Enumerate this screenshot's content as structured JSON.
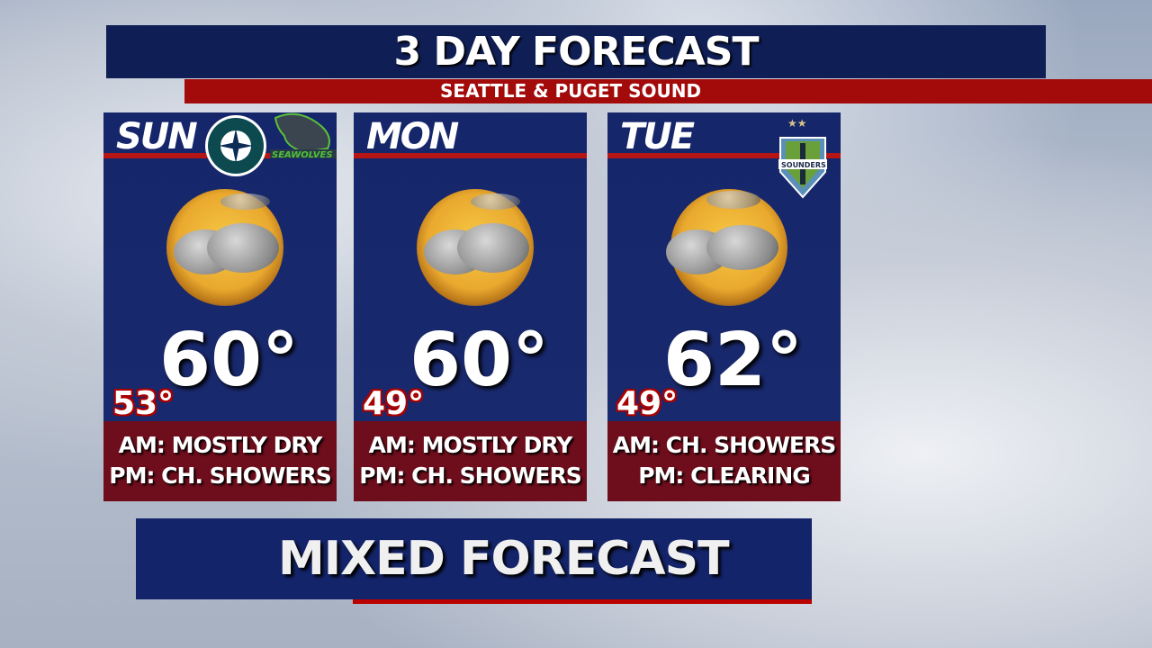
{
  "header": {
    "title": "3 DAY FORECAST",
    "subtitle": "SEATTLE & PUGET SOUND"
  },
  "days": [
    {
      "day": "SUN",
      "high": "60°",
      "low": "53°",
      "am": "AM: MOSTLY DRY",
      "pm": "PM: CH. SHOWERS",
      "icon": "partly-sunny-showers-icon",
      "logos": [
        "Seattle Mariners",
        "SEAWOLVES"
      ]
    },
    {
      "day": "MON",
      "high": "60°",
      "low": "49°",
      "am": "AM: MOSTLY DRY",
      "pm": "PM: CH. SHOWERS",
      "icon": "partly-sunny-showers-icon"
    },
    {
      "day": "TUE",
      "high": "62°",
      "low": "49°",
      "am": "AM: CH. SHOWERS",
      "pm": "PM: CLEARING",
      "icon": "partly-sunny-showers-icon",
      "logos": [
        "Seattle Sounders FC"
      ]
    }
  ],
  "banner": "MIXED FORECAST",
  "colors": {
    "navy": "#14246a",
    "red": "#a30a0a",
    "low_box": "#6e0d1b"
  }
}
